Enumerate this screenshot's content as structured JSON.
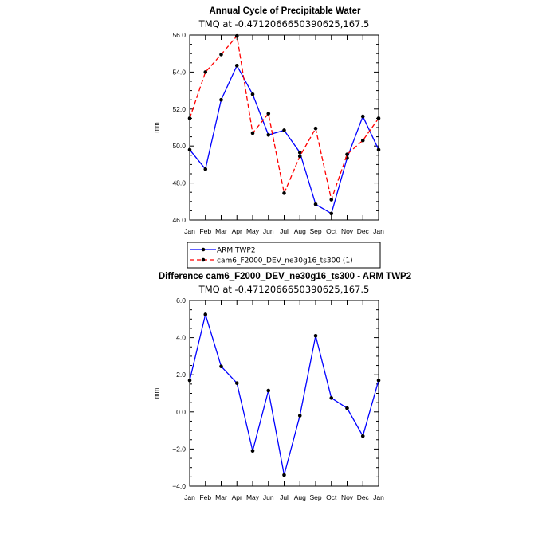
{
  "chart_data": [
    {
      "type": "line",
      "title": "Annual Cycle of Precipitable Water",
      "subtitle": "TMQ at -0.4712066650390625,167.5",
      "xlabel": "",
      "ylabel": "mm",
      "categories": [
        "Jan",
        "Feb",
        "Mar",
        "Apr",
        "May",
        "Jun",
        "Jul",
        "Aug",
        "Sep",
        "Oct",
        "Nov",
        "Dec",
        "Jan"
      ],
      "ylim": [
        46.0,
        56.0
      ],
      "yticks": [
        46.0,
        48.0,
        50.0,
        52.0,
        54.0,
        56.0
      ],
      "ytick_labels": [
        "46.0",
        "48.0",
        "50.0",
        "52.0",
        "54.0",
        "56.0"
      ],
      "grid": false,
      "legend": "below",
      "series": [
        {
          "name": "ARM TWP2",
          "color": "#0000ff",
          "dash": "solid",
          "values": [
            49.8,
            48.75,
            52.5,
            54.35,
            52.8,
            50.6,
            50.85,
            49.65,
            46.85,
            46.35,
            49.35,
            51.6,
            49.8
          ]
        },
        {
          "name": "cam6_F2000_DEV_ne30g16_ts300 (1)",
          "color": "#ff0000",
          "dash": "dashed",
          "values": [
            51.5,
            54.0,
            54.95,
            55.95,
            50.7,
            51.75,
            47.45,
            49.45,
            50.95,
            47.1,
            49.55,
            50.3,
            51.5
          ]
        }
      ]
    },
    {
      "type": "line",
      "title": "Difference cam6_F2000_DEV_ne30g16_ts300 - ARM TWP2",
      "subtitle": "TMQ at -0.4712066650390625,167.5",
      "xlabel": "",
      "ylabel": "mm",
      "categories": [
        "Jan",
        "Feb",
        "Mar",
        "Apr",
        "May",
        "Jun",
        "Jul",
        "Aug",
        "Sep",
        "Oct",
        "Nov",
        "Dec",
        "Jan"
      ],
      "ylim": [
        -4.0,
        6.0
      ],
      "yticks": [
        -4.0,
        -2.0,
        0.0,
        2.0,
        4.0,
        6.0
      ],
      "ytick_labels": [
        "−4.0",
        "−2.0",
        "0.0",
        "2.0",
        "4.0",
        "6.0"
      ],
      "grid": false,
      "series": [
        {
          "color": "#0000ff",
          "dash": "solid",
          "values": [
            1.7,
            5.25,
            2.45,
            1.55,
            -2.1,
            1.15,
            -3.4,
            -0.2,
            4.1,
            0.75,
            0.2,
            -1.3,
            1.7
          ]
        }
      ]
    }
  ]
}
